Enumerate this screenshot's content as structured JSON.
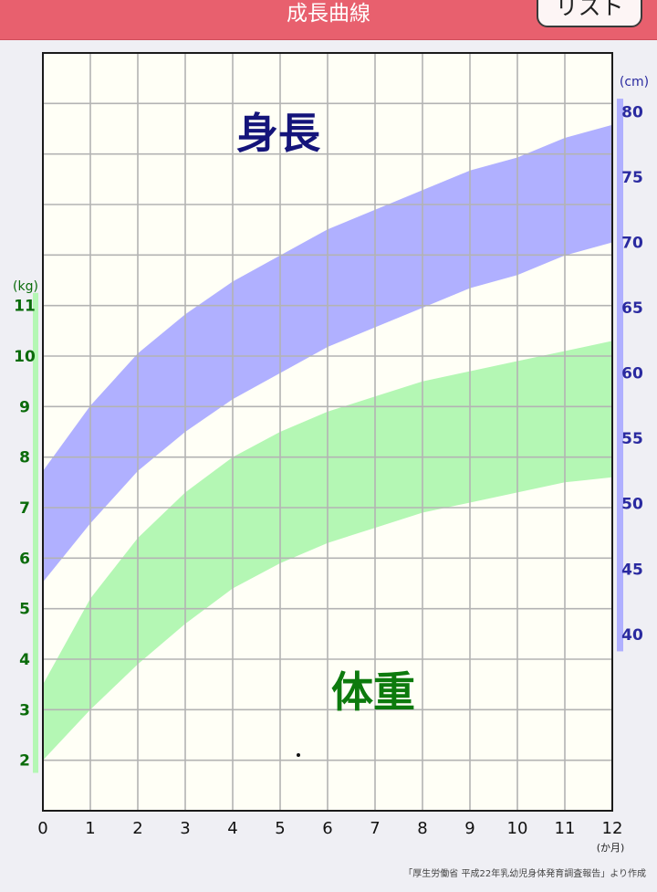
{
  "header": {
    "title": "成長曲線",
    "list_button_label": "リスト"
  },
  "chart_data": {
    "type": "area",
    "x_ticks": [
      "0",
      "1",
      "2",
      "3",
      "4",
      "5",
      "6",
      "7",
      "8",
      "9",
      "10",
      "11",
      "12"
    ],
    "x_unit": "(か月)",
    "xlim": [
      0,
      12
    ],
    "grid": true,
    "left_axis": {
      "unit": "(kg)",
      "ticks": [
        "2",
        "3",
        "4",
        "5",
        "6",
        "7",
        "8",
        "9",
        "10",
        "11"
      ],
      "ylim": [
        1,
        16
      ],
      "color": "#0a6b0a",
      "band_color": "#b4f7b4"
    },
    "right_axis": {
      "unit": "(cm)",
      "ticks": [
        "40",
        "45",
        "50",
        "55",
        "60",
        "65",
        "70",
        "75",
        "80"
      ],
      "ylim": [
        26.5,
        84.5
      ],
      "color": "#2a2aa0",
      "band_color": "#b0b0ff"
    },
    "bands": [
      {
        "label": "身長",
        "label_color": "#14147a",
        "axis": "right",
        "month": [
          0,
          1,
          2,
          3,
          4,
          5,
          6,
          7,
          8,
          9,
          10,
          11,
          12
        ],
        "lower": [
          44.0,
          48.5,
          52.5,
          55.5,
          58.0,
          60.0,
          62.0,
          63.5,
          65.0,
          66.5,
          67.5,
          69.0,
          70.0
        ],
        "upper": [
          52.5,
          57.5,
          61.5,
          64.5,
          67.0,
          69.0,
          71.0,
          72.5,
          74.0,
          75.5,
          76.5,
          78.0,
          79.0
        ]
      },
      {
        "label": "体重",
        "label_color": "#0d7a0d",
        "axis": "left",
        "month": [
          0,
          1,
          2,
          3,
          4,
          5,
          6,
          7,
          8,
          9,
          10,
          11,
          12
        ],
        "lower": [
          2.0,
          3.0,
          3.9,
          4.7,
          5.4,
          5.9,
          6.3,
          6.6,
          6.9,
          7.1,
          7.3,
          7.5,
          7.6
        ],
        "upper": [
          3.5,
          5.2,
          6.4,
          7.3,
          8.0,
          8.5,
          8.9,
          9.2,
          9.5,
          9.7,
          9.9,
          10.1,
          10.3
        ]
      }
    ]
  },
  "source": "「厚生労働省 平成22年乳幼児身体発育調査報告」より作成"
}
